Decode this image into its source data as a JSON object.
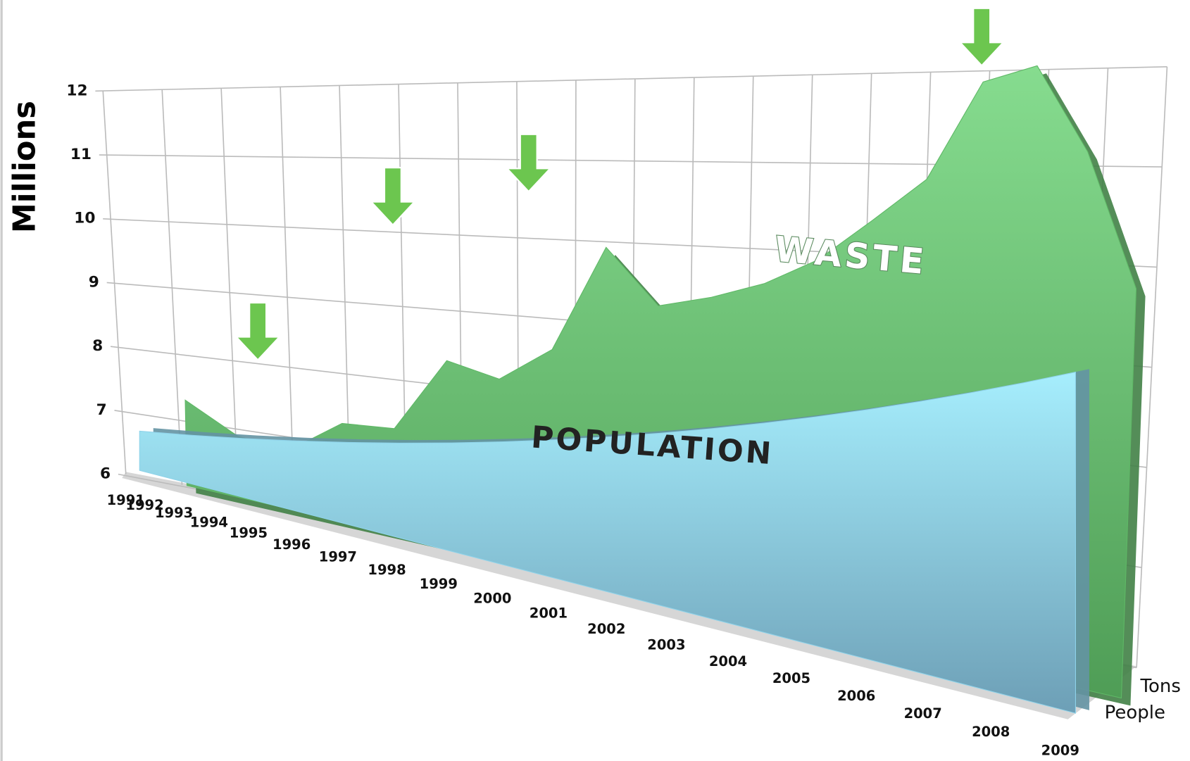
{
  "chart_data": {
    "type": "area",
    "y_label": "Millions",
    "annotations": [
      "WASTE",
      "POPULATION"
    ],
    "categories": [
      "1991",
      "1992",
      "1993",
      "1994",
      "1995",
      "1996",
      "1997",
      "1998",
      "1999",
      "2000",
      "2001",
      "2002",
      "2003",
      "2004",
      "2005",
      "2006",
      "2007",
      "2008",
      "2009"
    ],
    "series": [
      {
        "name": "Tons",
        "color": "#5fb866",
        "values": [
          7.3,
          6.9,
          6.85,
          7.35,
          7.4,
          8.4,
          8.25,
          8.7,
          10.0,
          9.35,
          9.5,
          9.7,
          10.0,
          10.45,
          10.9,
          11.9,
          12.05,
          11.2,
          9.9
        ]
      },
      {
        "name": "People",
        "color": "#8fd3ea",
        "values": [
          6.7,
          6.75,
          6.8,
          6.85,
          6.9,
          6.95,
          7.0,
          7.05,
          7.1,
          7.15,
          7.2,
          7.25,
          7.3,
          7.35,
          7.4,
          7.45,
          7.5,
          7.55,
          7.6
        ]
      }
    ],
    "ylim": [
      6,
      12
    ],
    "yticks": [
      6,
      7,
      8,
      9,
      10,
      11,
      12
    ],
    "grid": true
  }
}
